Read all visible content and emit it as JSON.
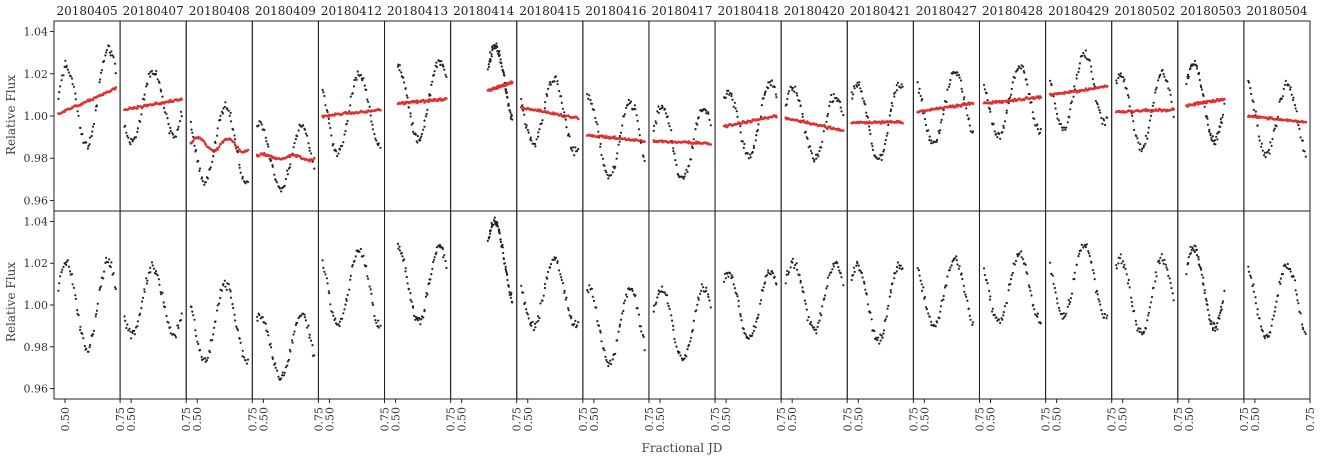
{
  "chart_data": {
    "type": "scatter",
    "nights": [
      "20180405",
      "20180407",
      "20180408",
      "20180409",
      "20180412",
      "20180413",
      "20180414",
      "20180415",
      "20180416",
      "20180417",
      "20180418",
      "20180420",
      "20180421",
      "20180427",
      "20180428",
      "20180429",
      "20180502",
      "20180503",
      "20180504"
    ],
    "xlabel": "Fractional JD",
    "ylabel": "Relative Flux",
    "xticks": [
      0.5,
      0.75
    ],
    "xtick_labels": [
      "0.50",
      "0.75"
    ],
    "xlim": [
      0.45,
      0.75
    ],
    "ylim": [
      0.955,
      1.045
    ],
    "yticks": [
      0.96,
      0.98,
      1.0,
      1.02,
      1.04
    ],
    "ytick_labels": [
      "0.96",
      "0.98",
      "1.00",
      "1.02",
      "1.04"
    ],
    "series": [
      {
        "panel": "top",
        "color": "#222222",
        "marker": "dot"
      },
      {
        "panel": "top",
        "color": "#e03030",
        "marker": "dot"
      },
      {
        "panel": "bottom",
        "color": "#222222",
        "marker": "dot"
      }
    ],
    "panels": [
      {
        "start": 0.47,
        "end": 0.73,
        "trend": [
          1.001,
          1.013
        ],
        "center": 1.0,
        "amp": 0.021,
        "phase": 0.4,
        "wiggle": 0
      },
      {
        "start": 0.47,
        "end": 0.73,
        "trend": [
          1.003,
          1.008
        ],
        "center": 1.002,
        "amp": 0.016,
        "phase": 3.6,
        "wiggle": 0
      },
      {
        "start": 0.47,
        "end": 0.73,
        "trend": [
          0.987,
          0.986
        ],
        "center": 0.992,
        "amp": 0.018,
        "phase": 2.6,
        "wiggle": 0.003
      },
      {
        "start": 0.47,
        "end": 0.73,
        "trend": [
          0.981,
          0.98
        ],
        "center": 0.98,
        "amp": 0.015,
        "phase": 1.1,
        "wiggle": 0.001
      },
      {
        "start": 0.47,
        "end": 0.73,
        "trend": [
          1.0,
          1.003
        ],
        "center": 1.008,
        "amp": 0.018,
        "phase": 2.4,
        "wiggle": 0
      },
      {
        "start": 0.51,
        "end": 0.73,
        "trend": [
          1.006,
          1.008
        ],
        "center": 1.01,
        "amp": 0.018,
        "phase": 1.6,
        "wiggle": 0
      },
      {
        "start": 0.62,
        "end": 0.73,
        "trend": [
          1.012,
          1.016
        ],
        "center": 1.02,
        "amp": 0.02,
        "phase": 0.6,
        "wiggle": 0
      },
      {
        "start": 0.47,
        "end": 0.73,
        "trend": [
          1.004,
          0.999
        ],
        "center": 1.006,
        "amp": 0.016,
        "phase": 2.9,
        "wiggle": 0
      },
      {
        "start": 0.47,
        "end": 0.73,
        "trend": [
          0.991,
          0.988
        ],
        "center": 0.99,
        "amp": 0.018,
        "phase": 1.4,
        "wiggle": 0
      },
      {
        "start": 0.47,
        "end": 0.73,
        "trend": [
          0.988,
          0.987
        ],
        "center": 0.991,
        "amp": 0.017,
        "phase": 0.3,
        "wiggle": 0
      },
      {
        "start": 0.49,
        "end": 0.73,
        "trend": [
          0.995,
          1.0
        ],
        "center": 1.0,
        "amp": 0.016,
        "phase": 0.9,
        "wiggle": 0
      },
      {
        "start": 0.47,
        "end": 0.73,
        "trend": [
          0.999,
          0.993
        ],
        "center": 1.004,
        "amp": 0.016,
        "phase": 0.4,
        "wiggle": 0
      },
      {
        "start": 0.47,
        "end": 0.7,
        "trend": [
          0.997,
          0.997
        ],
        "center": 1.001,
        "amp": 0.018,
        "phase": 0.7,
        "wiggle": 0
      },
      {
        "start": 0.47,
        "end": 0.72,
        "trend": [
          1.002,
          1.006
        ],
        "center": 1.006,
        "amp": 0.016,
        "phase": 2.3,
        "wiggle": 0
      },
      {
        "start": 0.47,
        "end": 0.73,
        "trend": [
          1.006,
          1.009
        ],
        "center": 1.008,
        "amp": 0.016,
        "phase": 2.5,
        "wiggle": 0
      },
      {
        "start": 0.47,
        "end": 0.73,
        "trend": [
          1.01,
          1.014
        ],
        "center": 1.012,
        "amp": 0.017,
        "phase": 2.7,
        "wiggle": 0
      },
      {
        "start": 0.47,
        "end": 0.73,
        "trend": [
          1.002,
          1.003
        ],
        "center": 1.004,
        "amp": 0.018,
        "phase": 0.9,
        "wiggle": 0
      },
      {
        "start": 0.49,
        "end": 0.66,
        "trend": [
          1.005,
          1.008
        ],
        "center": 1.008,
        "amp": 0.019,
        "phase": 0.5,
        "wiggle": 0
      },
      {
        "start": 0.47,
        "end": 0.73,
        "trend": [
          1.0,
          0.997
        ],
        "center": 1.002,
        "amp": 0.017,
        "phase": 2.0,
        "wiggle": 0
      }
    ]
  }
}
